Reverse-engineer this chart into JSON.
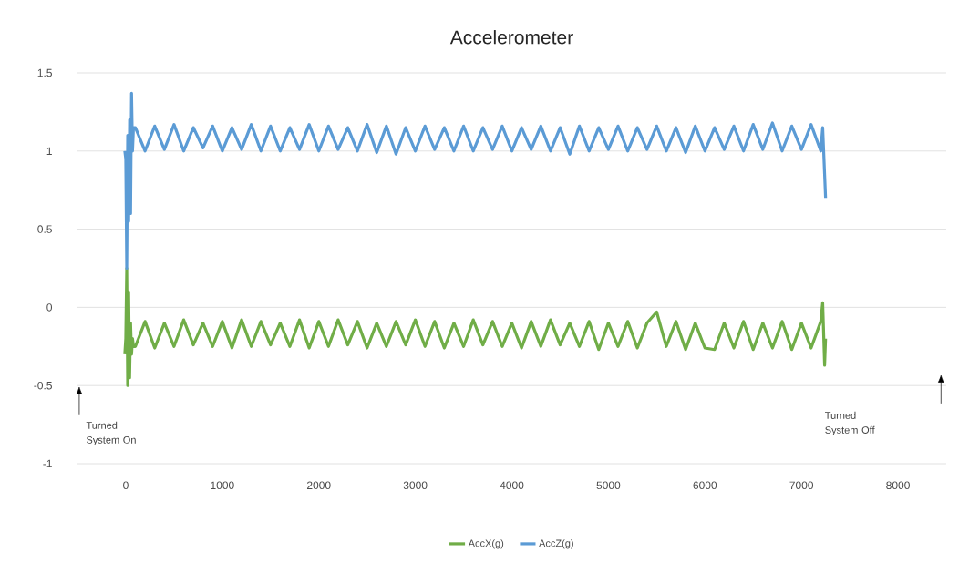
{
  "chart_data": {
    "type": "line",
    "title": "Accelerometer",
    "x": [
      -10,
      0,
      10,
      20,
      30,
      40,
      50,
      60,
      70,
      80,
      100,
      200,
      300,
      400,
      500,
      600,
      700,
      800,
      900,
      1000,
      1100,
      1200,
      1300,
      1400,
      1500,
      1600,
      1700,
      1800,
      1900,
      2000,
      2100,
      2200,
      2300,
      2400,
      2500,
      2600,
      2700,
      2800,
      2900,
      3000,
      3100,
      3200,
      3300,
      3400,
      3500,
      3600,
      3700,
      3800,
      3900,
      4000,
      4100,
      4200,
      4300,
      4400,
      4500,
      4600,
      4700,
      4800,
      4900,
      5000,
      5100,
      5200,
      5300,
      5400,
      5500,
      5600,
      5700,
      5800,
      5900,
      6000,
      6100,
      6200,
      6300,
      6400,
      6500,
      6600,
      6700,
      6800,
      6900,
      7000,
      7100,
      7200,
      7220,
      7240,
      7250
    ],
    "series": [
      {
        "name": "AccX(g)",
        "color": "#70ad47",
        "values": [
          -0.3,
          -0.2,
          0.25,
          -0.5,
          0.1,
          -0.45,
          -0.1,
          -0.3,
          -0.2,
          -0.25,
          -0.25,
          -0.09,
          -0.26,
          -0.1,
          -0.25,
          -0.08,
          -0.24,
          -0.1,
          -0.25,
          -0.09,
          -0.26,
          -0.08,
          -0.25,
          -0.09,
          -0.24,
          -0.1,
          -0.25,
          -0.08,
          -0.26,
          -0.09,
          -0.25,
          -0.08,
          -0.24,
          -0.09,
          -0.26,
          -0.1,
          -0.25,
          -0.09,
          -0.24,
          -0.08,
          -0.25,
          -0.09,
          -0.26,
          -0.1,
          -0.25,
          -0.08,
          -0.24,
          -0.09,
          -0.25,
          -0.1,
          -0.26,
          -0.09,
          -0.25,
          -0.08,
          -0.24,
          -0.1,
          -0.25,
          -0.09,
          -0.27,
          -0.1,
          -0.25,
          -0.09,
          -0.26,
          -0.1,
          -0.03,
          -0.25,
          -0.09,
          -0.27,
          -0.1,
          -0.26,
          -0.27,
          -0.1,
          -0.26,
          -0.09,
          -0.27,
          -0.1,
          -0.26,
          -0.09,
          -0.27,
          -0.1,
          -0.26,
          -0.09,
          0.03,
          -0.37,
          -0.2
        ]
      },
      {
        "name": "AccZ(g)",
        "color": "#5b9bd5",
        "values": [
          1.0,
          0.95,
          0.25,
          1.1,
          0.55,
          1.2,
          0.6,
          1.37,
          1.0,
          1.15,
          1.15,
          1.0,
          1.16,
          1.01,
          1.17,
          1.0,
          1.15,
          1.02,
          1.16,
          1.0,
          1.15,
          1.01,
          1.17,
          1.0,
          1.16,
          1.0,
          1.15,
          1.01,
          1.17,
          1.0,
          1.16,
          1.01,
          1.15,
          1.0,
          1.17,
          0.99,
          1.16,
          0.98,
          1.15,
          1.0,
          1.16,
          1.01,
          1.15,
          1.0,
          1.16,
          1.0,
          1.15,
          1.01,
          1.16,
          1.0,
          1.15,
          1.01,
          1.16,
          1.0,
          1.15,
          0.98,
          1.16,
          1.0,
          1.15,
          1.01,
          1.16,
          1.0,
          1.15,
          1.01,
          1.16,
          1.0,
          1.15,
          0.99,
          1.16,
          1.0,
          1.15,
          1.01,
          1.16,
          1.0,
          1.17,
          1.01,
          1.18,
          1.0,
          1.16,
          1.01,
          1.17,
          1.0,
          1.15,
          0.85,
          0.7
        ]
      }
    ],
    "xlim": [
      -500,
      8500
    ],
    "xticks": [
      0,
      1000,
      2000,
      3000,
      4000,
      5000,
      6000,
      7000,
      8000
    ],
    "ylim": [
      -1,
      1.5
    ],
    "yticks": [
      -1,
      -0.5,
      0,
      0.5,
      1,
      1.5
    ],
    "grid": "y",
    "legend": "bottom",
    "line_style": "solid",
    "annotations": [
      "Turned System On",
      "Turned System Off"
    ]
  }
}
